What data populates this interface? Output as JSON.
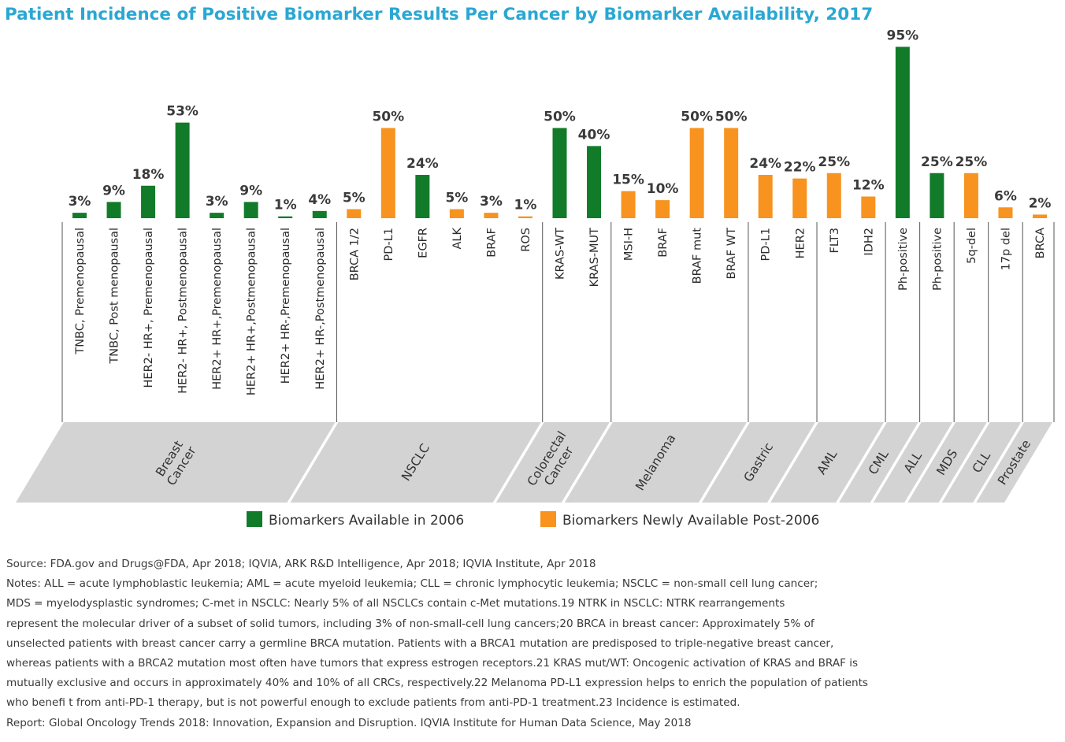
{
  "title": "Patient Incidence of Positive Biomarker Results Per Cancer by Biomarker Availability, 2017",
  "colors": {
    "available_2006": "#127b2a",
    "new_post_2006": "#f7931e",
    "group_band": "#d3d3d3",
    "title": "#2aa7d3"
  },
  "chart_data": {
    "type": "bar",
    "ylim": [
      0,
      100
    ],
    "series": [
      {
        "name": "Biomarkers Available in 2006",
        "color": "#127b2a"
      },
      {
        "name": "Biomarkers Newly Available Post-2006",
        "color": "#f7931e"
      }
    ],
    "bars": [
      {
        "label": "TNBC, Premenopausal",
        "value": 3,
        "value_label": "3%",
        "series": 0
      },
      {
        "label": "TNBC, Post menopausal",
        "value": 9,
        "value_label": "9%",
        "series": 0
      },
      {
        "label": "HER2- HR+, Premenopausal",
        "value": 18,
        "value_label": "18%",
        "series": 0
      },
      {
        "label": "HER2- HR+, Postmenopausal",
        "value": 53,
        "value_label": "53%",
        "series": 0
      },
      {
        "label": "HER2+ HR+,Premenopausal",
        "value": 3,
        "value_label": "3%",
        "series": 0
      },
      {
        "label": "HER2+ HR+,Postmenopausal",
        "value": 9,
        "value_label": "9%",
        "series": 0
      },
      {
        "label": "HER2+ HR-,Premenopausal",
        "value": 1,
        "value_label": "1%",
        "series": 0
      },
      {
        "label": "HER2+ HR-,Postmenopausal",
        "value": 4,
        "value_label": "4%",
        "series": 0
      },
      {
        "label": "BRCA 1/2",
        "value": 5,
        "value_label": "5%",
        "series": 1
      },
      {
        "label": "PD-L1",
        "value": 50,
        "value_label": "50%",
        "series": 1
      },
      {
        "label": "EGFR",
        "value": 24,
        "value_label": "24%",
        "series": 0
      },
      {
        "label": "ALK",
        "value": 5,
        "value_label": "5%",
        "series": 1
      },
      {
        "label": "BRAF",
        "value": 3,
        "value_label": "3%",
        "series": 1
      },
      {
        "label": "ROS",
        "value": 1,
        "value_label": "1%",
        "series": 1
      },
      {
        "label": "KRAS-WT",
        "value": 50,
        "value_label": "50%",
        "series": 0
      },
      {
        "label": "KRAS-MUT",
        "value": 40,
        "value_label": "40%",
        "series": 0
      },
      {
        "label": "MSI-H",
        "value": 15,
        "value_label": "15%",
        "series": 1
      },
      {
        "label": "BRAF",
        "value": 10,
        "value_label": "10%",
        "series": 1
      },
      {
        "label": "BRAF mut",
        "value": 50,
        "value_label": "50%",
        "series": 1
      },
      {
        "label": "BRAF WT",
        "value": 50,
        "value_label": "50%",
        "series": 1
      },
      {
        "label": "PD-L1",
        "value": 24,
        "value_label": "24%",
        "series": 1
      },
      {
        "label": "HER2",
        "value": 22,
        "value_label": "22%",
        "series": 1
      },
      {
        "label": "FLT3",
        "value": 25,
        "value_label": "25%",
        "series": 1
      },
      {
        "label": "IDH2",
        "value": 12,
        "value_label": "12%",
        "series": 1
      },
      {
        "label": "Ph-positive",
        "value": 95,
        "value_label": "95%",
        "series": 0
      },
      {
        "label": "Ph-positive",
        "value": 25,
        "value_label": "25%",
        "series": 0
      },
      {
        "label": "5q-del",
        "value": 25,
        "value_label": "25%",
        "series": 1
      },
      {
        "label": "17p del",
        "value": 6,
        "value_label": "6%",
        "series": 1
      },
      {
        "label": "BRCA",
        "value": 2,
        "value_label": "2%",
        "series": 1
      }
    ],
    "groups": [
      {
        "label_lines": [
          "Breast",
          "Cancer"
        ],
        "first_bar": 0,
        "last_bar": 7
      },
      {
        "label_lines": [
          "NSCLC"
        ],
        "first_bar": 8,
        "last_bar": 13
      },
      {
        "label_lines": [
          "Colorectal",
          "Cancer"
        ],
        "first_bar": 14,
        "last_bar": 15
      },
      {
        "label_lines": [
          "Melanoma"
        ],
        "first_bar": 16,
        "last_bar": 19
      },
      {
        "label_lines": [
          "Gastric"
        ],
        "first_bar": 20,
        "last_bar": 21
      },
      {
        "label_lines": [
          "AML"
        ],
        "first_bar": 22,
        "last_bar": 23
      },
      {
        "label_lines": [
          "CML"
        ],
        "first_bar": 24,
        "last_bar": 24
      },
      {
        "label_lines": [
          "ALL"
        ],
        "first_bar": 25,
        "last_bar": 25
      },
      {
        "label_lines": [
          "MDS"
        ],
        "first_bar": 26,
        "last_bar": 26
      },
      {
        "label_lines": [
          "CLL"
        ],
        "first_bar": 27,
        "last_bar": 27
      },
      {
        "label_lines": [
          "Prostate"
        ],
        "first_bar": 28,
        "last_bar": 28
      }
    ],
    "legend": [
      "Biomarkers Available in 2006",
      "Biomarkers Newly Available Post-2006"
    ]
  },
  "notes": {
    "source": "Source: FDA.gov and Drugs@FDA, Apr 2018; IQVIA, ARK R&D Intelligence, Apr 2018; IQVIA Institute, Apr 2018",
    "notes_lines": [
      "Notes: ALL = acute lymphoblastic leukemia; AML = acute myeloid leukemia; CLL = chronic lymphocytic leukemia; NSCLC = non-small cell lung cancer;",
      "MDS = myelodysplastic syndromes; C-met in NSCLC: Nearly 5% of all NSCLCs contain c-Met mutations.19 NTRK in NSCLC: NTRK rearrangements",
      "represent the molecular driver of a subset of solid tumors, including 3% of non-small-cell lung cancers;20 BRCA in breast cancer: Approximately 5% of",
      "unselected patients with breast cancer carry a germline BRCA mutation. Patients with a BRCA1 mutation are predisposed to triple-negative breast cancer,",
      "whereas patients with a BRCA2 mutation most often have tumors that express estrogen receptors.21 KRAS mut/WT: Oncogenic activation of KRAS and BRAF is",
      "mutually exclusive and occurs in approximately 40% and 10% of all CRCs, respectively.22 Melanoma PD-L1 expression helps to enrich the population of patients",
      "who benefi t from anti-PD-1 therapy, but is not powerful enough to exclude patients from anti-PD-1 treatment.23 Incidence is estimated."
    ],
    "report": "Report: Global Oncology Trends 2018: Innovation, Expansion and Disruption. IQVIA Institute for Human Data Science, May 2018"
  }
}
